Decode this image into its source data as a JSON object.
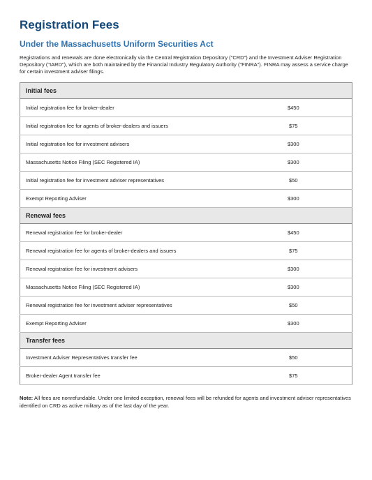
{
  "title": "Registration Fees",
  "subtitle": "Under the Massachusetts Uniform Securities Act",
  "intro": "Registrations and renewals are done electronically via the Central Registration Depository (\"CRD\") and the Investment Adviser Registration Depository (\"IARD\"), which are both maintained by the Financial Industry Regulatory Authority (\"FINRA\"). FINRA may assess a service charge for certain investment adviser filings.",
  "sections": [
    {
      "header": "Initial fees",
      "rows": [
        {
          "label": "Initial registration fee for broker-dealer",
          "amount": "$450"
        },
        {
          "label": "Initial registration fee for agents of broker-dealers and issuers",
          "amount": "$75"
        },
        {
          "label": "Initial registration fee for investment advisers",
          "amount": "$300"
        },
        {
          "label": "Massachusetts Notice Filing (SEC Registered IA)",
          "amount": "$300"
        },
        {
          "label": "Initial registration fee for investment adviser representatives",
          "amount": "$50"
        },
        {
          "label": "Exempt Reporting Adviser",
          "amount": "$300"
        }
      ]
    },
    {
      "header": "Renewal fees",
      "rows": [
        {
          "label": "Renewal registration fee for broker-dealer",
          "amount": "$450"
        },
        {
          "label": "Renewal registration fee for agents of broker-dealers and issuers",
          "amount": "$75"
        },
        {
          "label": "Renewal registration fee for investment advisers",
          "amount": "$300"
        },
        {
          "label": "Massachusetts Notice Filing (SEC Registered IA)",
          "amount": "$300"
        },
        {
          "label": "Renewal registration fee for investment adviser representatives",
          "amount": "$50"
        },
        {
          "label": "Exempt Reporting Adviser",
          "amount": "$300"
        }
      ]
    },
    {
      "header": "Transfer fees",
      "rows": [
        {
          "label": "Investment Adviser Representatives transfer fee",
          "amount": "$50"
        },
        {
          "label": "Broker-dealer Agent transfer fee",
          "amount": "$75"
        }
      ]
    }
  ],
  "note_label": "Note:",
  "note_text": " All fees are nonrefundable. Under one limited exception, renewal fees will be refunded for agents and investment adviser representatives identified on CRD as active military as of the last day of the year."
}
